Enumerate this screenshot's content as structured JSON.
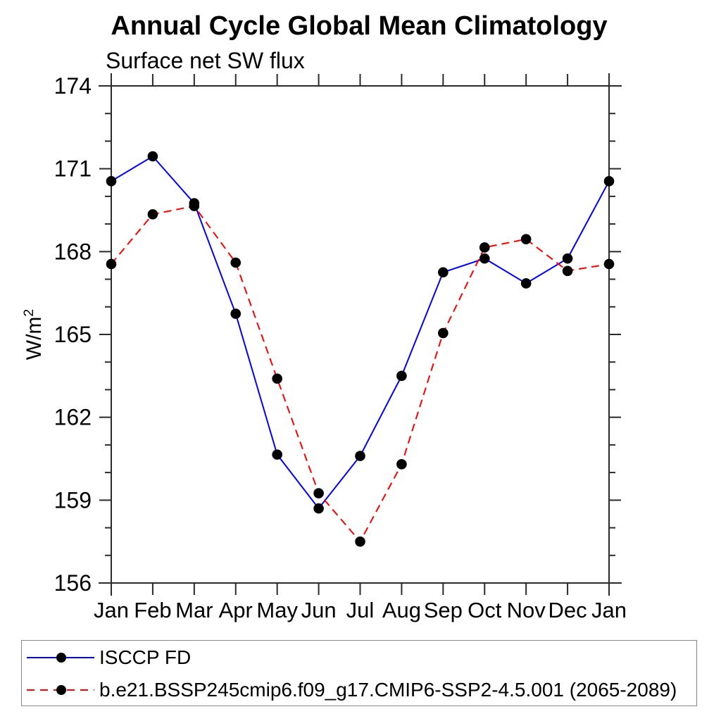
{
  "header": {
    "title": "Annual Cycle Global Mean Climatology",
    "subtitle": "Surface net SW flux"
  },
  "chart_data": {
    "type": "line",
    "title": "Annual Cycle Global Mean Climatology",
    "subtitle": "Surface net SW flux",
    "ylabel": "W/m²",
    "categories": [
      "Jan",
      "Feb",
      "Mar",
      "Apr",
      "May",
      "Jun",
      "Jul",
      "Aug",
      "Sep",
      "Oct",
      "Nov",
      "Dec",
      "Jan"
    ],
    "ylim": [
      156,
      174
    ],
    "y_major_ticks": [
      156,
      159,
      162,
      165,
      168,
      171,
      174
    ],
    "y_minor_step": 1,
    "grid": false,
    "legend_position": "bottom",
    "series": [
      {
        "name": "ISCCP FD",
        "color": "#0000ff",
        "style": "solid",
        "marker": "circle",
        "marker_color": "#000000",
        "values": [
          170.55,
          171.45,
          169.75,
          165.75,
          160.65,
          158.7,
          160.6,
          163.5,
          167.25,
          167.75,
          166.85,
          167.75,
          170.55
        ]
      },
      {
        "name": "b.e21.BSSP245cmip6.f09_g17.CMIP6-SSP2-4.5.001 (2065-2089)",
        "color": "#ff0000",
        "style": "dashed",
        "marker": "circle",
        "marker_color": "#000000",
        "values": [
          167.55,
          169.35,
          169.65,
          167.6,
          163.4,
          159.25,
          157.5,
          160.3,
          165.05,
          168.15,
          168.45,
          167.3,
          167.55
        ]
      }
    ]
  },
  "colors": {
    "axis": "#2a2a2a",
    "series_blue": "#0000ff",
    "series_red": "#ff0000",
    "marker": "#000000",
    "legend_border": "#888888"
  }
}
